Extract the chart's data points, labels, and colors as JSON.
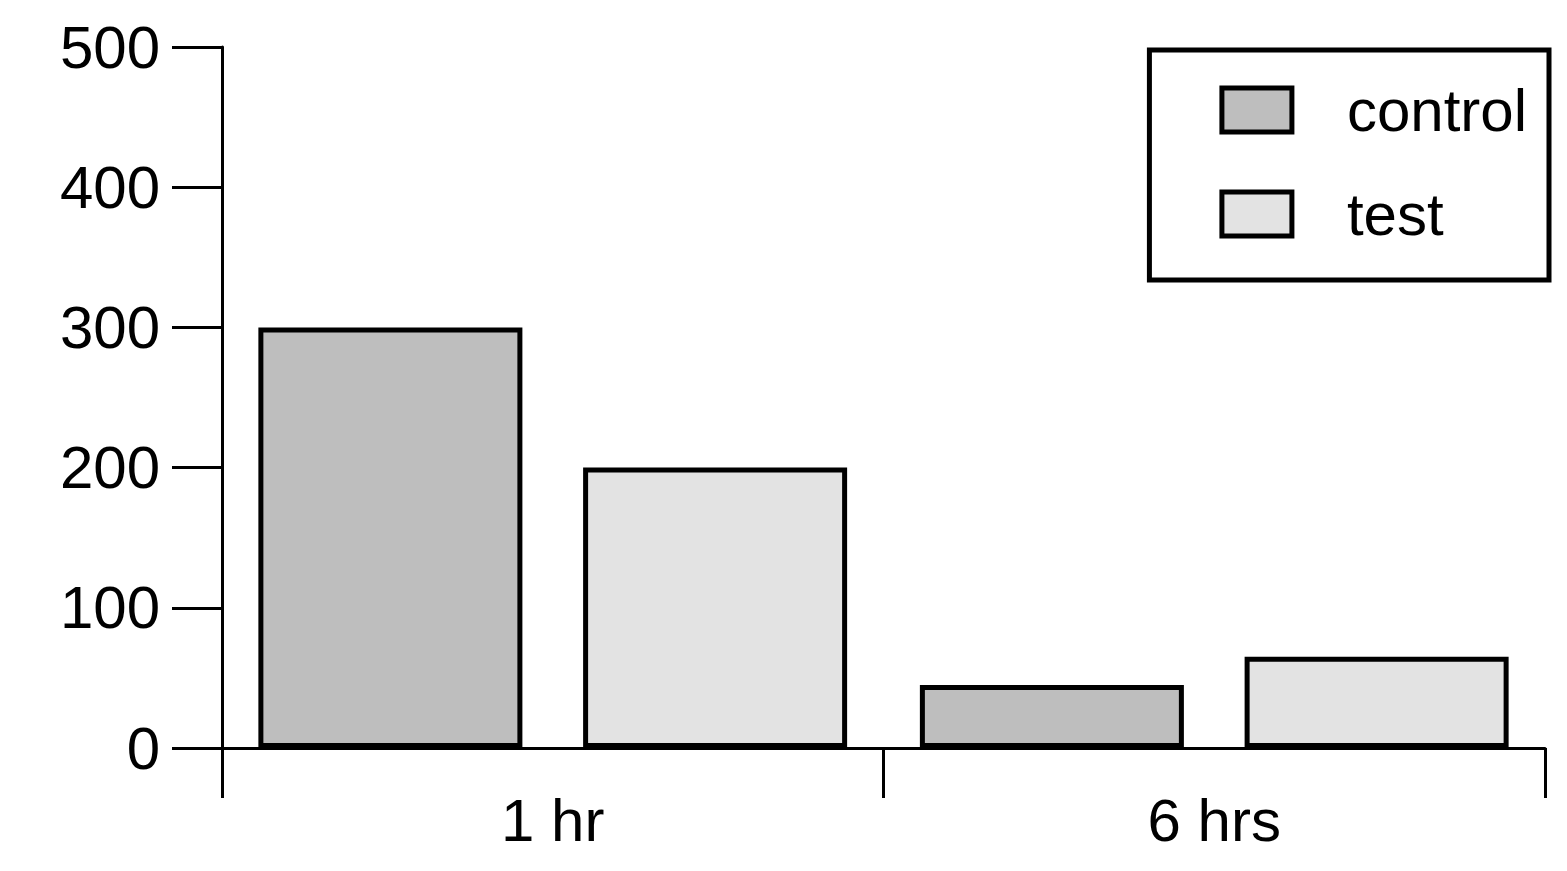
{
  "chart_data": {
    "type": "bar",
    "categories": [
      "1 hr",
      "6 hrs"
    ],
    "series": [
      {
        "name": "control",
        "color": "#bebebe",
        "values": [
          300,
          45
        ]
      },
      {
        "name": "test",
        "color": "#e3e3e3",
        "values": [
          200,
          65
        ]
      }
    ],
    "ylim": [
      0,
      500
    ],
    "yticks": [
      0,
      100,
      200,
      300,
      400,
      500
    ],
    "grid": false,
    "legend": "top right"
  }
}
